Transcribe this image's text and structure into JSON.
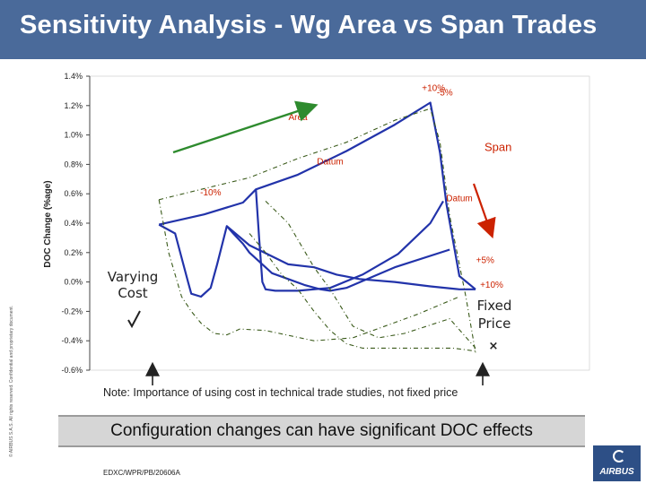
{
  "slide": {
    "title": "Sensitivity Analysis - Wg Area vs Span Trades",
    "side_text": "© AIRBUS S.A.S. All rights reserved. Confidential and proprietary document.",
    "note": "Note:  Importance of using cost in technical trade studies, not fixed price",
    "banner": "Configuration changes can have significant DOC effects",
    "doc_ref": "EDXC/WPR/PB/20606A",
    "logo_text": "AIRBUS"
  },
  "chart_data": {
    "type": "line",
    "ylabel": "DOC Change (%age)",
    "ylim": [
      -0.6,
      1.4
    ],
    "yticks": [
      1.4,
      1.2,
      1.0,
      0.8,
      0.6,
      0.4,
      0.2,
      0.0,
      -0.2,
      -0.4,
      -0.6
    ],
    "ytick_labels": [
      "1.4%",
      "1.2%",
      "1.0%",
      "0.8%",
      "0.6%",
      "0.4%",
      "0.2%",
      "0.0%",
      "-0.2%",
      "-0.4%",
      "-0.6%"
    ],
    "xlim": [
      0,
      100
    ],
    "grid": false,
    "colors": {
      "varying": "#2233aa",
      "fixed": "#3a5a1a",
      "area_arrow": "#2e8b2e",
      "span_arrow": "#cc2200",
      "annotation": "#cc2200"
    },
    "series": [
      {
        "style": "solid",
        "points": [
          [
            2,
            0.39
          ],
          [
            7,
            0.33
          ],
          [
            11,
            0.0
          ],
          [
            12,
            -0.08
          ],
          [
            15,
            -0.1
          ],
          [
            18,
            -0.04
          ],
          [
            20,
            0.12
          ],
          [
            23,
            0.38
          ],
          [
            25,
            0.33
          ],
          [
            28,
            0.26
          ],
          [
            30,
            0.2
          ],
          [
            37,
            0.06
          ],
          [
            42,
            0.02
          ],
          [
            47,
            -0.02
          ],
          [
            52,
            -0.05
          ],
          [
            55,
            -0.06
          ],
          [
            60,
            -0.04
          ],
          [
            75,
            0.1
          ],
          [
            92,
            0.22
          ]
        ]
      },
      {
        "style": "solid",
        "points": [
          [
            2,
            0.39
          ],
          [
            16,
            0.46
          ],
          [
            28,
            0.54
          ],
          [
            32,
            0.63
          ],
          [
            45,
            0.73
          ],
          [
            60,
            0.89
          ],
          [
            75,
            1.07
          ],
          [
            86,
            1.22
          ],
          [
            89,
            0.88
          ],
          [
            91,
            0.53
          ],
          [
            95,
            0.04
          ],
          [
            100,
            -0.05
          ]
        ]
      },
      {
        "style": "solid",
        "points": [
          [
            32,
            0.63
          ],
          [
            33,
            0.3
          ],
          [
            34,
            0.0
          ],
          [
            35,
            -0.05
          ],
          [
            38,
            -0.06
          ],
          [
            45,
            -0.06
          ],
          [
            55,
            -0.04
          ],
          [
            65,
            0.05
          ],
          [
            76,
            0.19
          ],
          [
            86,
            0.4
          ],
          [
            90,
            0.55
          ]
        ]
      },
      {
        "style": "solid",
        "points": [
          [
            23,
            0.38
          ],
          [
            30,
            0.25
          ],
          [
            42,
            0.12
          ],
          [
            50,
            0.1
          ],
          [
            57,
            0.05
          ],
          [
            64,
            0.02
          ],
          [
            75,
            0.0
          ],
          [
            86,
            -0.03
          ],
          [
            95,
            -0.05
          ],
          [
            100,
            -0.05
          ]
        ]
      },
      {
        "style": "dash",
        "points": [
          [
            2,
            0.56
          ],
          [
            15,
            0.63
          ],
          [
            30,
            0.71
          ],
          [
            45,
            0.84
          ],
          [
            60,
            0.95
          ],
          [
            75,
            1.1
          ],
          [
            86,
            1.18
          ],
          [
            89,
            0.95
          ],
          [
            92,
            0.45
          ],
          [
            97,
            -0.1
          ],
          [
            100,
            -0.48
          ]
        ]
      },
      {
        "style": "dash",
        "points": [
          [
            2,
            0.56
          ],
          [
            5,
            0.2
          ],
          [
            9,
            -0.1
          ],
          [
            12,
            -0.2
          ],
          [
            15,
            -0.28
          ],
          [
            19,
            -0.35
          ],
          [
            23,
            -0.36
          ],
          [
            27,
            -0.32
          ],
          [
            35,
            -0.33
          ],
          [
            50,
            -0.4
          ],
          [
            62,
            -0.38
          ],
          [
            72,
            -0.3
          ],
          [
            82,
            -0.22
          ],
          [
            95,
            -0.1
          ]
        ]
      },
      {
        "style": "dash",
        "points": [
          [
            30,
            0.33
          ],
          [
            35,
            0.2
          ],
          [
            40,
            0.05
          ],
          [
            45,
            -0.05
          ],
          [
            50,
            -0.2
          ],
          [
            55,
            -0.33
          ],
          [
            60,
            -0.42
          ],
          [
            65,
            -0.45
          ],
          [
            75,
            -0.45
          ],
          [
            85,
            -0.45
          ],
          [
            93,
            -0.45
          ],
          [
            100,
            -0.47
          ]
        ]
      },
      {
        "style": "dash",
        "points": [
          [
            35,
            0.55
          ],
          [
            42,
            0.4
          ],
          [
            50,
            0.1
          ],
          [
            55,
            -0.05
          ],
          [
            62,
            -0.3
          ],
          [
            70,
            -0.38
          ],
          [
            78,
            -0.35
          ],
          [
            85,
            -0.3
          ],
          [
            92,
            -0.25
          ],
          [
            100,
            -0.45
          ]
        ]
      }
    ],
    "annotations": [
      {
        "text": "+10%",
        "x": 87,
        "y": 1.3
      },
      {
        "text": "-5%",
        "x": 90.5,
        "y": 1.27
      },
      {
        "text": "Area",
        "x": 45,
        "y": 1.1
      },
      {
        "text": "Span",
        "x": 107,
        "y": 0.89
      },
      {
        "text": "Datum",
        "x": 55,
        "y": 0.8
      },
      {
        "text": "Datum",
        "x": 95,
        "y": 0.55
      },
      {
        "text": "-10%",
        "x": 18,
        "y": 0.59
      },
      {
        "text": "+5%",
        "x": 103,
        "y": 0.13
      },
      {
        "text": "+10%",
        "x": 105,
        "y": -0.04
      }
    ],
    "labels": {
      "varying": [
        "Varying",
        "Cost"
      ],
      "fixed": [
        "Fixed",
        "Price"
      ]
    }
  }
}
